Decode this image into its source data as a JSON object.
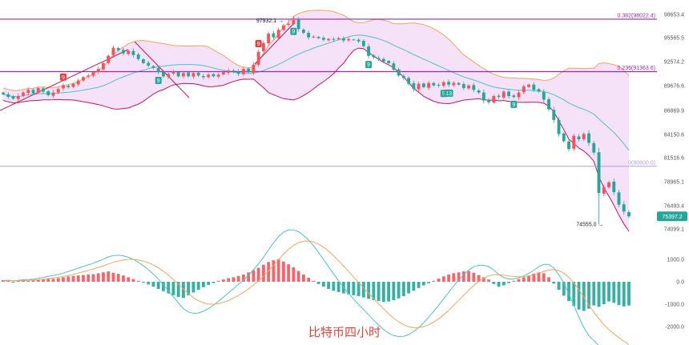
{
  "caption": "比特币四小时",
  "colors": {
    "up": "#f0555f",
    "down": "#26a69a",
    "fib": "#9c27b0",
    "fib_bottom": "#b39ddb",
    "band_fill": "#f3dcf7",
    "band_upper": "#f5a35c",
    "band_lower": "#c2185b",
    "mid": "#4ec3c6",
    "macd_fast": "#4ec3c6",
    "macd_slow": "#f5a35c",
    "tag": "#e0443d",
    "tag_green": "#26a69a"
  },
  "chart_data": [
    {
      "type": "candlestick",
      "title": "",
      "y_ticks": [
        "98653.4",
        "95565.5",
        "92574.2",
        "89676.6",
        "86869.9",
        "84150.6",
        "81516.6",
        "78965.1",
        "76493.4",
        "74099.1"
      ],
      "fib_levels": [
        {
          "label": "0.382(98022.4)",
          "value": 98022.4
        },
        {
          "label": "0.236(91363.6)",
          "value": 91363.6
        },
        {
          "label": "0(80600.0)",
          "value": 80600.0
        }
      ],
      "annotations": {
        "high_label": "97932.1",
        "low_label": "74555.0",
        "last_price": "75397.2"
      },
      "td_markers": [
        {
          "text": "9",
          "color": "red",
          "bar": 12
        },
        {
          "text": "9",
          "color": "green",
          "bar": 31
        },
        {
          "text": "9",
          "color": "red",
          "bar": 51
        },
        {
          "text": "9",
          "color": "green",
          "bar": 58
        },
        {
          "text": "9",
          "color": "green",
          "bar": 73
        },
        {
          "text": "9",
          "color": "green",
          "bar": 88
        },
        {
          "text": "13",
          "color": "green",
          "bar": 89
        },
        {
          "text": "9",
          "color": "green",
          "bar": 102
        }
      ],
      "close": [
        88700,
        88400,
        88200,
        88500,
        88900,
        89200,
        88800,
        89400,
        89000,
        88600,
        88900,
        89300,
        89700,
        89500,
        89900,
        90300,
        90700,
        90900,
        91300,
        91700,
        92400,
        93300,
        94300,
        94000,
        93600,
        93900,
        93400,
        92900,
        92400,
        92100,
        91800,
        91300,
        90800,
        91100,
        91400,
        90800,
        91200,
        90800,
        91200,
        90900,
        90700,
        91000,
        90800,
        91000,
        91300,
        91500,
        91300,
        91100,
        91700,
        91300,
        92200,
        93800,
        94900,
        96100,
        95600,
        96600,
        97200,
        97400,
        97900,
        96700,
        96200,
        95600,
        95700,
        95500,
        95300,
        95400,
        95300,
        95500,
        95200,
        95400,
        95300,
        95100,
        94500,
        93300,
        93100,
        92900,
        92600,
        92400,
        91600,
        90900,
        90600,
        89900,
        89300,
        89900,
        89500,
        90000,
        89700,
        89700,
        90100,
        89800,
        90000,
        89800,
        89400,
        89700,
        89200,
        88900,
        88000,
        87800,
        88500,
        88400,
        89000,
        88500,
        88400,
        88900,
        89600,
        89800,
        89200,
        89000,
        88100,
        87000,
        85800,
        84200,
        83400,
        82500,
        84000,
        83600,
        84200,
        83200,
        82100,
        77800,
        78400,
        78900,
        77900,
        76600,
        75900,
        75400
      ],
      "macd": {
        "y_ticks": [
          "1000.0",
          "0.0",
          "-1000.0",
          "-2000.0"
        ],
        "hist": [
          80,
          60,
          -40,
          50,
          70,
          40,
          60,
          90,
          120,
          150,
          130,
          160,
          200,
          240,
          260,
          280,
          300,
          320,
          340,
          380,
          420,
          460,
          400,
          350,
          280,
          200,
          120,
          40,
          -40,
          -120,
          -220,
          -320,
          -420,
          -520,
          -600,
          -680,
          -720,
          -600,
          -480,
          -360,
          -240,
          -140,
          -60,
          40,
          100,
          160,
          200,
          260,
          320,
          420,
          520,
          620,
          760,
          880,
          960,
          1000,
          900,
          780,
          640,
          480,
          320,
          180,
          40,
          -100,
          -220,
          -320,
          -400,
          -460,
          -520,
          -560,
          -600,
          -640,
          -700,
          -760,
          -820,
          -860,
          -900,
          -880,
          -820,
          -740,
          -640,
          -520,
          -400,
          -280,
          -160,
          -60,
          40,
          140,
          240,
          320,
          380,
          420,
          460,
          480,
          400,
          300,
          200,
          100,
          -100,
          -220,
          -160,
          -60,
          40,
          120,
          200,
          280,
          360,
          420,
          380,
          200,
          -80,
          -360,
          -620,
          -860,
          -1080,
          -1240,
          -1300,
          -1200,
          -1060,
          -1120,
          -1000,
          -880,
          -940,
          -1040,
          -1100,
          -1060
        ]
      }
    }
  ]
}
